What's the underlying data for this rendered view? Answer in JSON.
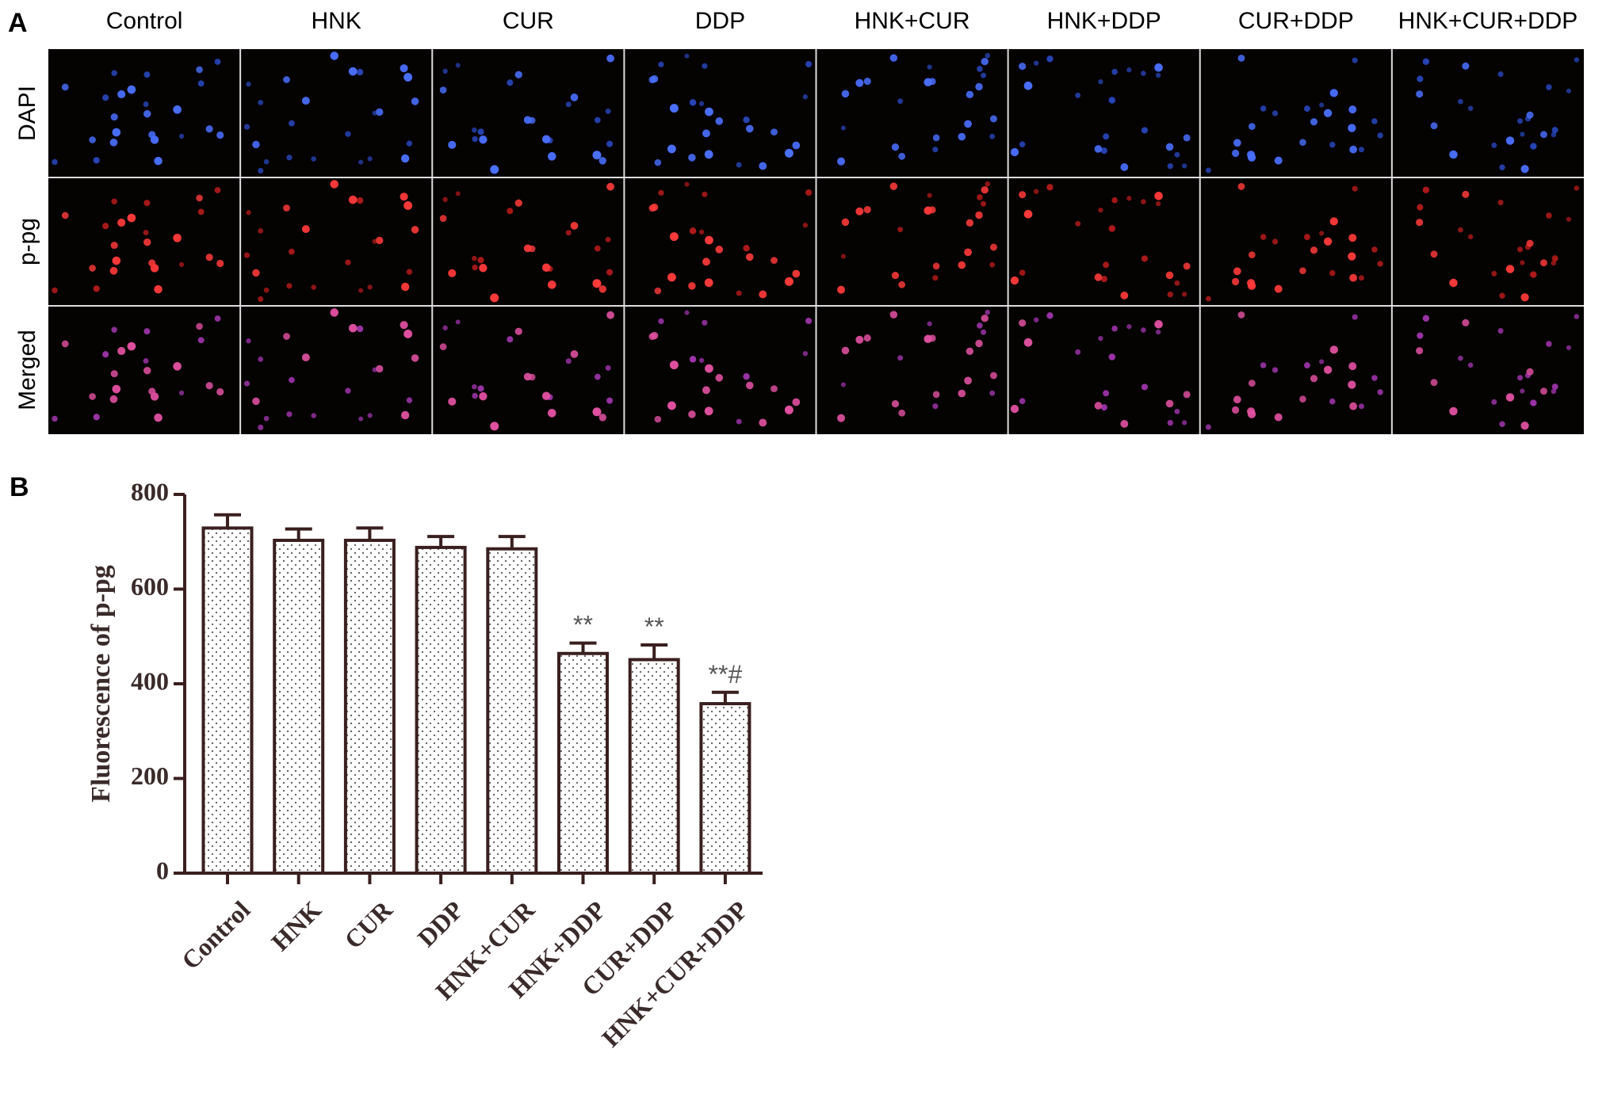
{
  "panel_a": {
    "label": "A",
    "columns": [
      "Control",
      "HNK",
      "CUR",
      "DDP",
      "HNK+CUR",
      "HNK+DDP",
      "CUR+DDP",
      "HNK+CUR+DDP"
    ],
    "rows": [
      "DAPI",
      "p-pg",
      "Merged"
    ]
  },
  "chart_data": {
    "type": "bar",
    "panel_label": "B",
    "ylabel": "Fluorescence of p-pg",
    "categories": [
      "Control",
      "HNK",
      "CUR",
      "DDP",
      "HNK+CUR",
      "HNK+DDP",
      "CUR+DDP",
      "HNK+CUR+DDP"
    ],
    "values": [
      729,
      703,
      703,
      688,
      685,
      464,
      451,
      358
    ],
    "errors": [
      28,
      24,
      26,
      23,
      26,
      22,
      31,
      24
    ],
    "annotations": [
      null,
      null,
      null,
      null,
      null,
      "**",
      "**",
      "**#"
    ],
    "color": "#3a1f1f",
    "ylim": [
      0,
      800
    ],
    "yticks": [
      0,
      200,
      400,
      600,
      800
    ]
  }
}
